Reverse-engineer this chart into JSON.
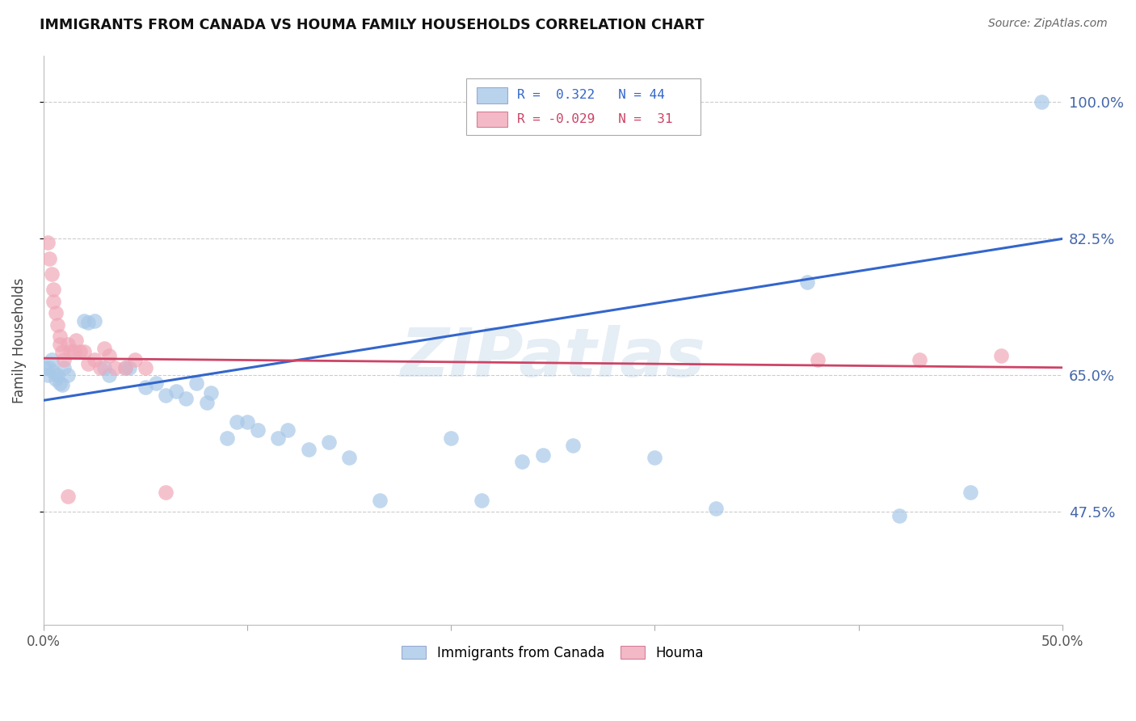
{
  "title": "IMMIGRANTS FROM CANADA VS HOUMA FAMILY HOUSEHOLDS CORRELATION CHART",
  "source": "Source: ZipAtlas.com",
  "ylabel": "Family Households",
  "ytick_labels": [
    "100.0%",
    "82.5%",
    "65.0%",
    "47.5%"
  ],
  "ytick_values": [
    1.0,
    0.825,
    0.65,
    0.475
  ],
  "xmin": 0.0,
  "xmax": 0.5,
  "ymin": 0.33,
  "ymax": 1.06,
  "blue_color": "#a8c8e8",
  "pink_color": "#f0a8b8",
  "line_blue": "#3366cc",
  "line_pink": "#cc4466",
  "watermark": "ZIPatlas",
  "blue_points": [
    [
      0.001,
      0.66
    ],
    [
      0.002,
      0.65
    ],
    [
      0.003,
      0.66
    ],
    [
      0.004,
      0.67
    ],
    [
      0.005,
      0.655
    ],
    [
      0.006,
      0.645
    ],
    [
      0.007,
      0.65
    ],
    [
      0.008,
      0.64
    ],
    [
      0.009,
      0.638
    ],
    [
      0.01,
      0.66
    ],
    [
      0.012,
      0.65
    ],
    [
      0.02,
      0.72
    ],
    [
      0.022,
      0.718
    ],
    [
      0.025,
      0.72
    ],
    [
      0.03,
      0.66
    ],
    [
      0.032,
      0.65
    ],
    [
      0.04,
      0.66
    ],
    [
      0.042,
      0.66
    ],
    [
      0.05,
      0.635
    ],
    [
      0.055,
      0.64
    ],
    [
      0.06,
      0.625
    ],
    [
      0.065,
      0.63
    ],
    [
      0.07,
      0.62
    ],
    [
      0.075,
      0.64
    ],
    [
      0.08,
      0.615
    ],
    [
      0.082,
      0.628
    ],
    [
      0.09,
      0.57
    ],
    [
      0.095,
      0.59
    ],
    [
      0.1,
      0.59
    ],
    [
      0.105,
      0.58
    ],
    [
      0.115,
      0.57
    ],
    [
      0.12,
      0.58
    ],
    [
      0.13,
      0.555
    ],
    [
      0.14,
      0.565
    ],
    [
      0.15,
      0.545
    ],
    [
      0.165,
      0.49
    ],
    [
      0.2,
      0.57
    ],
    [
      0.215,
      0.49
    ],
    [
      0.235,
      0.54
    ],
    [
      0.245,
      0.548
    ],
    [
      0.26,
      0.56
    ],
    [
      0.3,
      0.545
    ],
    [
      0.33,
      0.48
    ],
    [
      0.375,
      0.77
    ],
    [
      0.42,
      0.47
    ],
    [
      0.455,
      0.5
    ],
    [
      0.49,
      1.0
    ]
  ],
  "pink_points": [
    [
      0.002,
      0.82
    ],
    [
      0.003,
      0.8
    ],
    [
      0.004,
      0.78
    ],
    [
      0.005,
      0.76
    ],
    [
      0.005,
      0.745
    ],
    [
      0.006,
      0.73
    ],
    [
      0.007,
      0.715
    ],
    [
      0.008,
      0.7
    ],
    [
      0.008,
      0.69
    ],
    [
      0.009,
      0.68
    ],
    [
      0.01,
      0.67
    ],
    [
      0.012,
      0.69
    ],
    [
      0.013,
      0.68
    ],
    [
      0.015,
      0.68
    ],
    [
      0.016,
      0.695
    ],
    [
      0.018,
      0.68
    ],
    [
      0.02,
      0.68
    ],
    [
      0.022,
      0.665
    ],
    [
      0.025,
      0.67
    ],
    [
      0.028,
      0.66
    ],
    [
      0.03,
      0.685
    ],
    [
      0.032,
      0.675
    ],
    [
      0.035,
      0.66
    ],
    [
      0.04,
      0.66
    ],
    [
      0.045,
      0.67
    ],
    [
      0.05,
      0.66
    ],
    [
      0.06,
      0.5
    ],
    [
      0.012,
      0.495
    ],
    [
      0.38,
      0.67
    ],
    [
      0.43,
      0.67
    ],
    [
      0.47,
      0.675
    ]
  ],
  "blue_line_x": [
    0.0,
    0.5
  ],
  "blue_line_y": [
    0.618,
    0.825
  ],
  "pink_line_x": [
    0.0,
    0.5
  ],
  "pink_line_y": [
    0.672,
    0.66
  ]
}
